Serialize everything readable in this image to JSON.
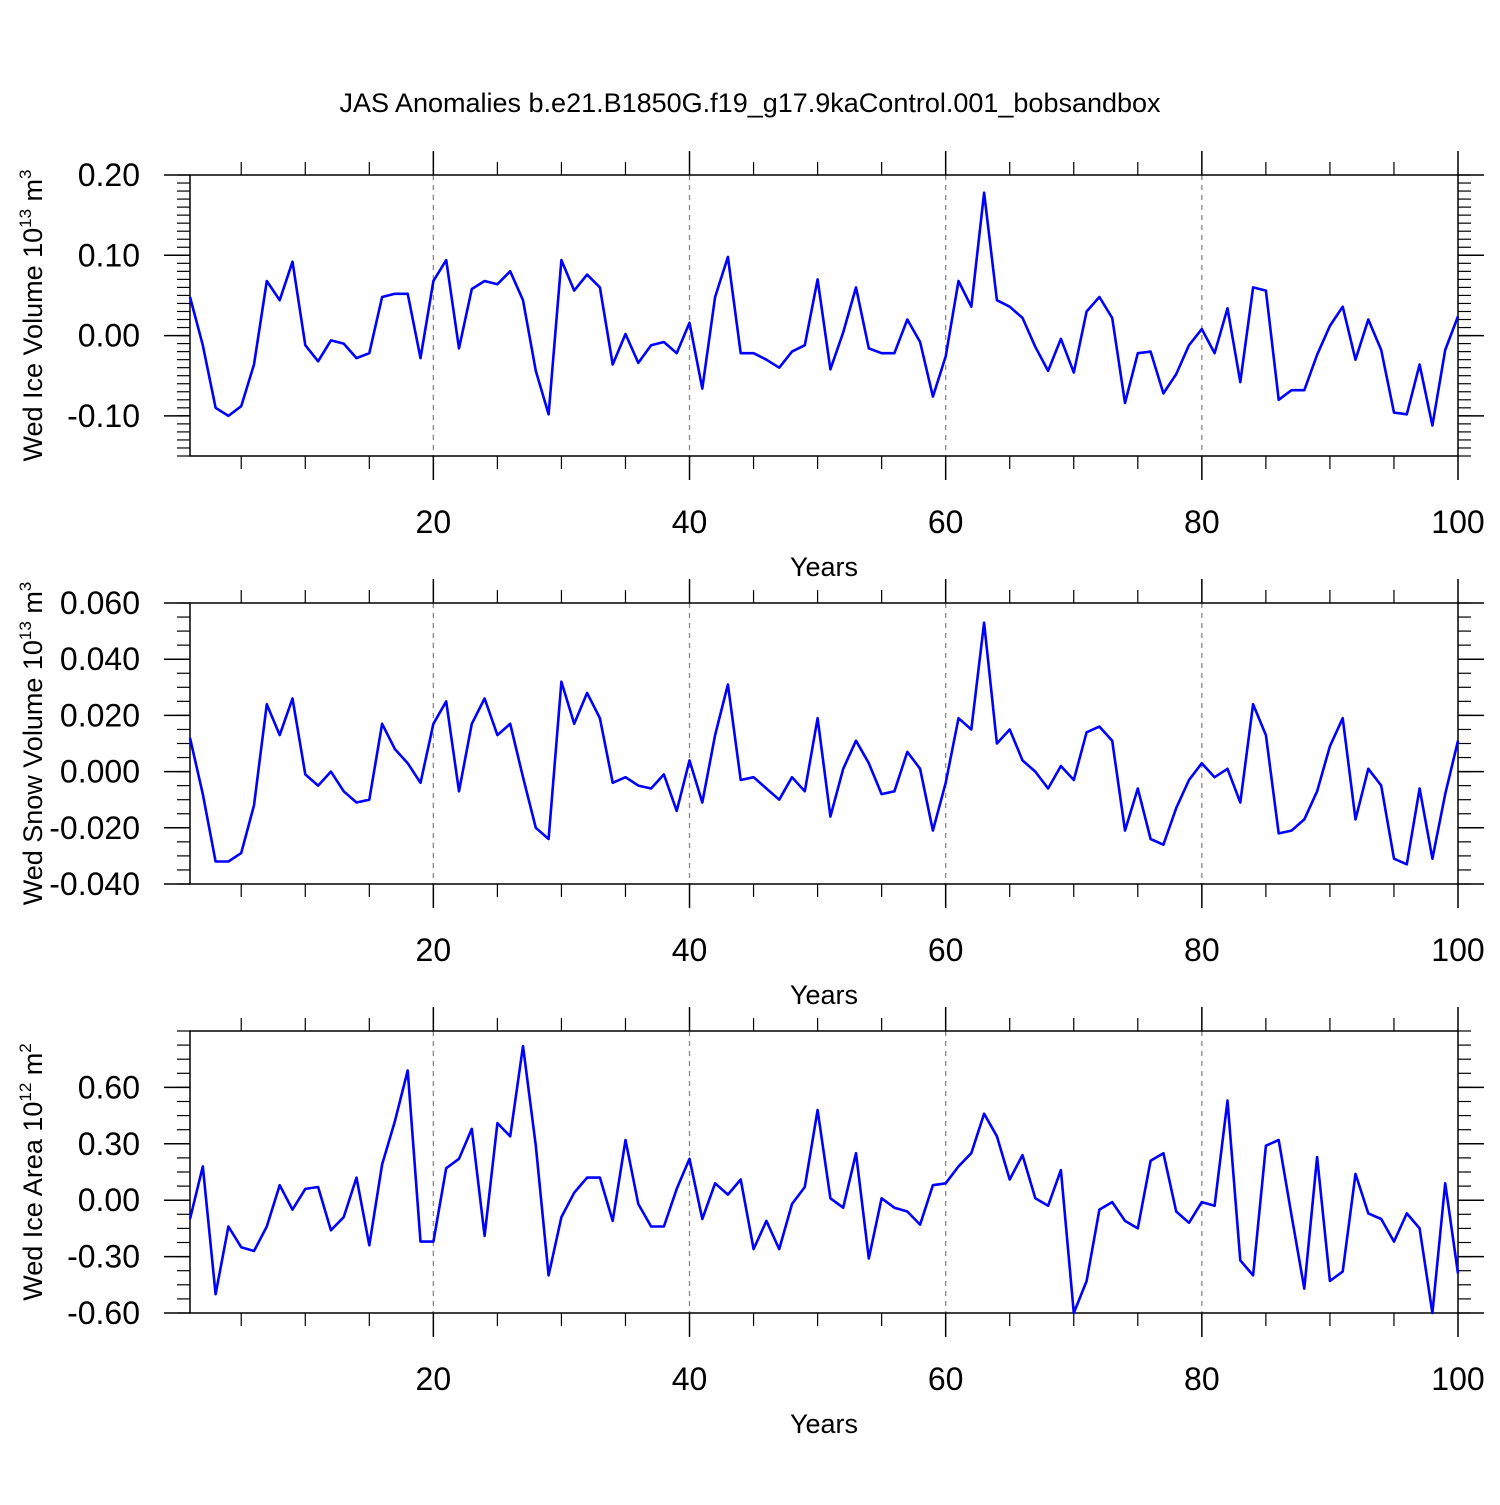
{
  "title": "JAS Anomalies b.e21.B1850G.f19_g17.9kaControl.001_bobsandbox",
  "colors": {
    "line": "#0000ff",
    "axis": "#000000",
    "grid": "#888888"
  },
  "chart_data": [
    {
      "type": "line",
      "ylabel": {
        "text": "Wed Ice Volume 10",
        "exponent": "13",
        "unit": " m",
        "unit_exponent": "3"
      },
      "xlabel": "Years",
      "xlim": [
        1,
        100
      ],
      "ylim": [
        -0.15,
        0.2
      ],
      "x_ticks": [
        "20",
        "40",
        "60",
        "80",
        "100"
      ],
      "y_ticks": [
        "-0.10",
        "0.00",
        "0.10",
        "0.20"
      ],
      "grid": "x-dashed",
      "series": [
        {
          "values": [
            0.048,
            -0.012,
            -0.09,
            -0.1,
            -0.088,
            -0.036,
            0.068,
            0.044,
            0.092,
            -0.012,
            -0.032,
            -0.006,
            -0.01,
            -0.028,
            -0.022,
            0.048,
            0.052,
            0.052,
            -0.028,
            0.068,
            0.094,
            -0.016,
            0.058,
            0.068,
            0.064,
            0.08,
            0.044,
            -0.044,
            -0.098,
            0.094,
            0.056,
            0.076,
            0.06,
            -0.036,
            0.002,
            -0.034,
            -0.012,
            -0.008,
            -0.022,
            0.016,
            -0.066,
            0.048,
            0.098,
            -0.022,
            -0.022,
            -0.03,
            -0.04,
            -0.02,
            -0.012,
            0.07,
            -0.042,
            0.004,
            0.06,
            -0.016,
            -0.022,
            -0.022,
            0.02,
            -0.008,
            -0.076,
            -0.026,
            0.068,
            0.036,
            0.178,
            0.044,
            0.036,
            0.022,
            -0.014,
            -0.044,
            -0.004,
            -0.046,
            0.03,
            0.048,
            0.022,
            -0.084,
            -0.022,
            -0.02,
            -0.072,
            -0.048,
            -0.012,
            0.008,
            -0.022,
            0.034,
            -0.058,
            0.06,
            0.056,
            -0.08,
            -0.068,
            -0.068,
            -0.024,
            0.012,
            0.036,
            -0.03,
            0.02,
            -0.018,
            -0.096,
            -0.098,
            -0.036,
            -0.112,
            -0.018,
            0.024
          ]
        }
      ]
    },
    {
      "type": "line",
      "ylabel": {
        "text": "Wed Snow Volume 10",
        "exponent": "13",
        "unit": " m",
        "unit_exponent": "3"
      },
      "xlabel": "Years",
      "xlim": [
        1,
        100
      ],
      "ylim": [
        -0.04,
        0.06
      ],
      "x_ticks": [
        "20",
        "40",
        "60",
        "80",
        "100"
      ],
      "y_ticks": [
        "-0.040",
        "-0.020",
        "0.000",
        "0.020",
        "0.040",
        "0.060"
      ],
      "grid": "x-dashed",
      "series": [
        {
          "values": [
            0.012,
            -0.008,
            -0.032,
            -0.032,
            -0.029,
            -0.012,
            0.024,
            0.013,
            0.026,
            -0.001,
            -0.005,
            0.0,
            -0.007,
            -0.011,
            -0.01,
            0.017,
            0.008,
            0.003,
            -0.004,
            0.017,
            0.025,
            -0.007,
            0.017,
            0.026,
            0.013,
            0.017,
            -0.002,
            -0.02,
            -0.024,
            0.032,
            0.017,
            0.028,
            0.019,
            -0.004,
            -0.002,
            -0.005,
            -0.006,
            -0.001,
            -0.014,
            0.004,
            -0.011,
            0.013,
            0.031,
            -0.003,
            -0.002,
            -0.006,
            -0.01,
            -0.002,
            -0.007,
            0.019,
            -0.016,
            0.001,
            0.011,
            0.003,
            -0.008,
            -0.007,
            0.007,
            0.001,
            -0.021,
            -0.004,
            0.019,
            0.015,
            0.053,
            0.01,
            0.015,
            0.004,
            0.0,
            -0.006,
            0.002,
            -0.003,
            0.014,
            0.016,
            0.011,
            -0.021,
            -0.006,
            -0.024,
            -0.026,
            -0.013,
            -0.003,
            0.003,
            -0.002,
            0.001,
            -0.011,
            0.024,
            0.013,
            -0.022,
            -0.021,
            -0.017,
            -0.007,
            0.009,
            0.019,
            -0.017,
            0.001,
            -0.005,
            -0.031,
            -0.033,
            -0.006,
            -0.031,
            -0.008,
            0.011
          ]
        }
      ]
    },
    {
      "type": "line",
      "ylabel": {
        "text": "Wed Ice Area 10",
        "exponent": "12",
        "unit": " m",
        "unit_exponent": "2"
      },
      "xlabel": "Years",
      "xlim": [
        1,
        100
      ],
      "ylim": [
        -0.6,
        0.9
      ],
      "x_ticks": [
        "20",
        "40",
        "60",
        "80",
        "100"
      ],
      "y_ticks": [
        "-0.60",
        "-0.30",
        "0.00",
        "0.30",
        "0.60"
      ],
      "grid": "x-dashed",
      "series": [
        {
          "values": [
            -0.1,
            0.18,
            -0.5,
            -0.14,
            -0.25,
            -0.27,
            -0.14,
            0.08,
            -0.05,
            0.06,
            0.07,
            -0.16,
            -0.09,
            0.12,
            -0.24,
            0.19,
            0.42,
            0.69,
            -0.22,
            -0.22,
            0.17,
            0.22,
            0.38,
            -0.19,
            0.41,
            0.34,
            0.82,
            0.29,
            -0.4,
            -0.09,
            0.04,
            0.12,
            0.12,
            -0.11,
            0.32,
            -0.02,
            -0.14,
            -0.14,
            0.06,
            0.22,
            -0.1,
            0.09,
            0.03,
            0.11,
            -0.26,
            -0.11,
            -0.26,
            -0.02,
            0.07,
            0.48,
            0.01,
            -0.04,
            0.25,
            -0.31,
            0.01,
            -0.04,
            -0.06,
            -0.13,
            0.08,
            0.09,
            0.18,
            0.25,
            0.46,
            0.34,
            0.11,
            0.24,
            0.01,
            -0.03,
            0.16,
            -0.6,
            -0.43,
            -0.05,
            -0.01,
            -0.11,
            -0.15,
            0.21,
            0.25,
            -0.06,
            -0.12,
            -0.01,
            -0.03,
            0.53,
            -0.32,
            -0.4,
            0.29,
            0.32,
            -0.08,
            -0.47,
            0.23,
            -0.43,
            -0.38,
            0.14,
            -0.07,
            -0.1,
            -0.22,
            -0.07,
            -0.15,
            -0.6,
            0.09,
            -0.39
          ]
        }
      ]
    }
  ]
}
